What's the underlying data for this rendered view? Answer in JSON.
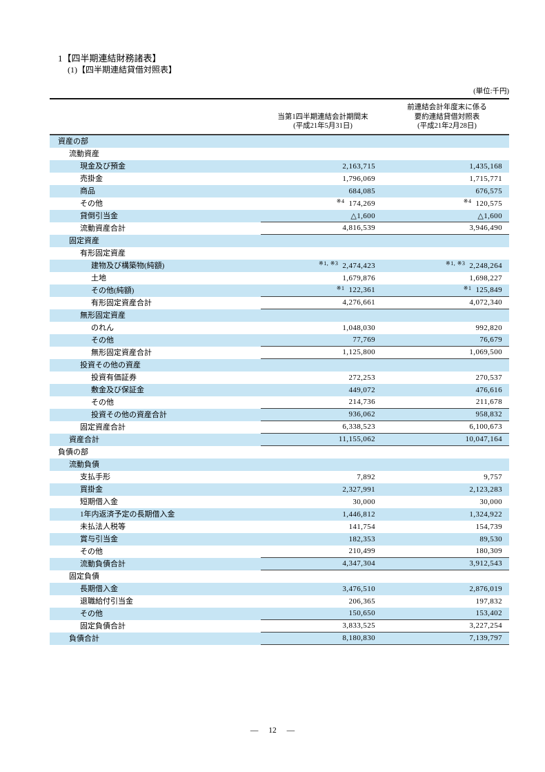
{
  "page": {
    "title": "1【四半期連結財務諸表】",
    "subtitle": "(1)【四半期連結貸借対照表】",
    "unit_note": "(単位:千円)",
    "page_number": "― 12 ―"
  },
  "colors": {
    "row_highlight": "#c7e5f4",
    "rule_dark": "#3c3c3c"
  },
  "table": {
    "col1_header": [
      "当第1四半期連結会計期間末",
      "(平成21年5月31日)"
    ],
    "col2_header": [
      "前連結会計年度末に係る",
      "要約連結貸借対照表",
      "(平成21年2月28日)"
    ],
    "rows": [
      {
        "label": "資産の部",
        "indent": 1
      },
      {
        "label": "流動資産",
        "indent": 2
      },
      {
        "label": "現金及び預金",
        "indent": 3,
        "v1": "2,163,715",
        "v2": "1,435,168"
      },
      {
        "label": "売掛金",
        "indent": 3,
        "v1": "1,796,069",
        "v2": "1,715,771"
      },
      {
        "label": "商品",
        "indent": 3,
        "v1": "684,085",
        "v2": "676,575"
      },
      {
        "label": "その他",
        "indent": 3,
        "n1": "※4",
        "v1": "174,269",
        "n2": "※4",
        "v2": "120,575"
      },
      {
        "label": "貸倒引当金",
        "indent": 3,
        "v1": "△1,600",
        "v2": "△1,600",
        "line": true
      },
      {
        "label": "流動資産合計",
        "indent": 3,
        "v1": "4,816,539",
        "v2": "3,946,490",
        "line": true
      },
      {
        "label": "固定資産",
        "indent": 2
      },
      {
        "label": "有形固定資産",
        "indent": 3
      },
      {
        "label": "建物及び構築物(純額)",
        "indent": 4,
        "n1": "※1, ※3",
        "v1": "2,474,423",
        "n2": "※1, ※3",
        "v2": "2,248,264"
      },
      {
        "label": "土地",
        "indent": 4,
        "v1": "1,679,876",
        "v2": "1,698,227"
      },
      {
        "label": "その他(純額)",
        "indent": 4,
        "n1": "※1",
        "v1": "122,361",
        "n2": "※1",
        "v2": "125,849",
        "line": true
      },
      {
        "label": "有形固定資産合計",
        "indent": 4,
        "v1": "4,276,661",
        "v2": "4,072,340",
        "line": true
      },
      {
        "label": "無形固定資産",
        "indent": 3
      },
      {
        "label": "のれん",
        "indent": 4,
        "v1": "1,048,030",
        "v2": "992,820"
      },
      {
        "label": "その他",
        "indent": 4,
        "v1": "77,769",
        "v2": "76,679",
        "line": true
      },
      {
        "label": "無形固定資産合計",
        "indent": 4,
        "v1": "1,125,800",
        "v2": "1,069,500",
        "line": true
      },
      {
        "label": "投資その他の資産",
        "indent": 3
      },
      {
        "label": "投資有価証券",
        "indent": 4,
        "v1": "272,253",
        "v2": "270,537"
      },
      {
        "label": "敷金及び保証金",
        "indent": 4,
        "v1": "449,072",
        "v2": "476,616"
      },
      {
        "label": "その他",
        "indent": 4,
        "v1": "214,736",
        "v2": "211,678",
        "line": true
      },
      {
        "label": "投資その他の資産合計",
        "indent": 4,
        "v1": "936,062",
        "v2": "958,832",
        "line": true
      },
      {
        "label": "固定資産合計",
        "indent": 3,
        "v1": "6,338,523",
        "v2": "6,100,673",
        "line": true
      },
      {
        "label": "資産合計",
        "indent": 2,
        "v1": "11,155,062",
        "v2": "10,047,164",
        "line": true
      },
      {
        "label": "負債の部",
        "indent": 1
      },
      {
        "label": "流動負債",
        "indent": 2
      },
      {
        "label": "支払手形",
        "indent": 3,
        "v1": "7,892",
        "v2": "9,757"
      },
      {
        "label": "買掛金",
        "indent": 3,
        "v1": "2,327,991",
        "v2": "2,123,283"
      },
      {
        "label": "短期借入金",
        "indent": 3,
        "v1": "30,000",
        "v2": "30,000"
      },
      {
        "label": "1年内返済予定の長期借入金",
        "indent": 3,
        "v1": "1,446,812",
        "v2": "1,324,922"
      },
      {
        "label": "未払法人税等",
        "indent": 3,
        "v1": "141,754",
        "v2": "154,739"
      },
      {
        "label": "賞与引当金",
        "indent": 3,
        "v1": "182,353",
        "v2": "89,530"
      },
      {
        "label": "その他",
        "indent": 3,
        "v1": "210,499",
        "v2": "180,309",
        "line": true
      },
      {
        "label": "流動負債合計",
        "indent": 3,
        "v1": "4,347,304",
        "v2": "3,912,543",
        "line": true
      },
      {
        "label": "固定負債",
        "indent": 2
      },
      {
        "label": "長期借入金",
        "indent": 3,
        "v1": "3,476,510",
        "v2": "2,876,019"
      },
      {
        "label": "退職給付引当金",
        "indent": 3,
        "v1": "206,365",
        "v2": "197,832"
      },
      {
        "label": "その他",
        "indent": 3,
        "v1": "150,650",
        "v2": "153,402",
        "line": true
      },
      {
        "label": "固定負債合計",
        "indent": 3,
        "v1": "3,833,525",
        "v2": "3,227,254",
        "line": true
      },
      {
        "label": "負債合計",
        "indent": 2,
        "v1": "8,180,830",
        "v2": "7,139,797",
        "line": true
      }
    ]
  }
}
